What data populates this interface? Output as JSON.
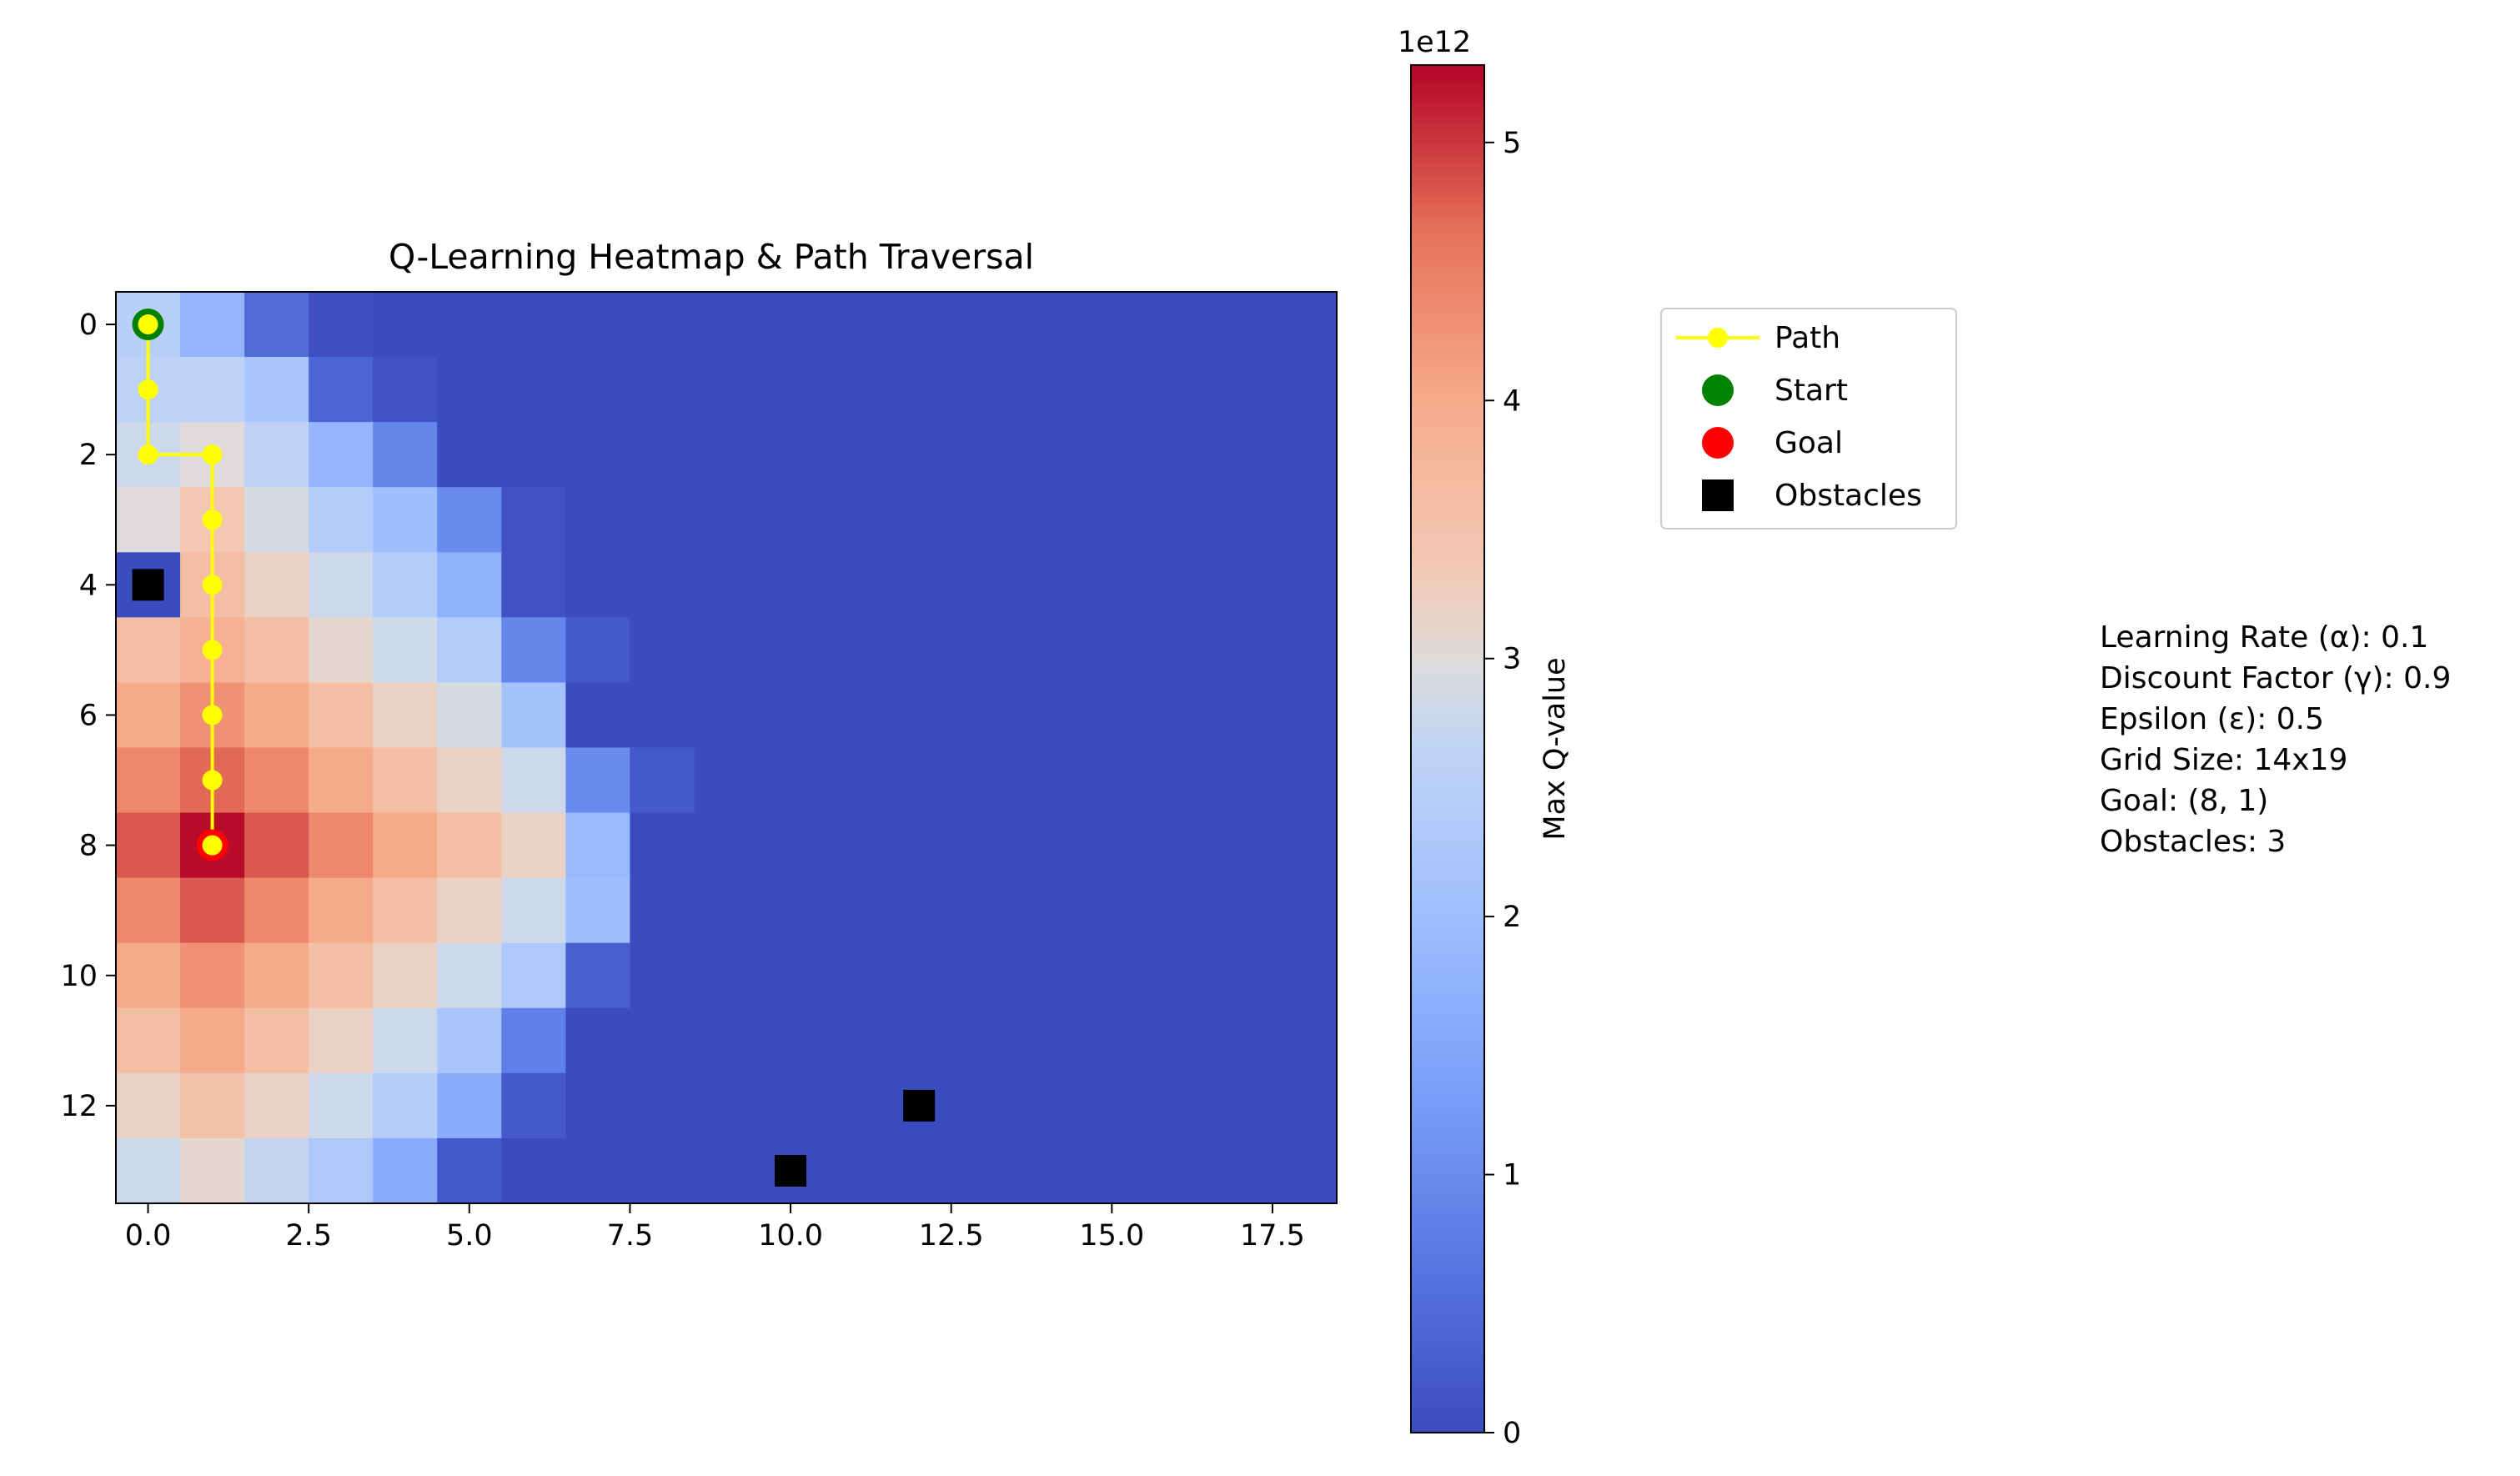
{
  "chart_data": {
    "type": "heatmap",
    "title": "Q-Learning Heatmap & Path Traversal",
    "xlabel": "",
    "ylabel": "",
    "grid": false,
    "rows": 14,
    "cols": 19,
    "xlim": [
      -0.5,
      18.5
    ],
    "ylim": [
      13.5,
      -0.5
    ],
    "x_ticks": [
      0,
      2.5,
      5,
      7.5,
      10,
      12.5,
      15,
      17.5
    ],
    "x_tick_labels": [
      "0.0",
      "2.5",
      "5.0",
      "7.5",
      "10.0",
      "12.5",
      "15.0",
      "17.5"
    ],
    "y_ticks": [
      0,
      2,
      4,
      6,
      8,
      10,
      12
    ],
    "y_tick_labels": [
      "0",
      "2",
      "4",
      "6",
      "8",
      "10",
      "12"
    ],
    "values_unit_exponent": 12,
    "values": [
      [
        2.5,
        1.8,
        0.5,
        0.05,
        0,
        0,
        0,
        0,
        0,
        0,
        0,
        0,
        0,
        0,
        0,
        0,
        0,
        0,
        0
      ],
      [
        2.6,
        2.6,
        2.2,
        0.4,
        0.1,
        0,
        0,
        0,
        0,
        0,
        0,
        0,
        0,
        0,
        0,
        0,
        0,
        0,
        0
      ],
      [
        2.8,
        3.0,
        2.6,
        1.8,
        0.9,
        0,
        0,
        0,
        0,
        0,
        0,
        0,
        0,
        0,
        0,
        0,
        0,
        0,
        0
      ],
      [
        3.0,
        3.4,
        2.9,
        2.4,
        2.0,
        1.0,
        0.1,
        0,
        0,
        0,
        0,
        0,
        0,
        0,
        0,
        0,
        0,
        0,
        0
      ],
      [
        0,
        3.6,
        3.2,
        2.8,
        2.4,
        1.7,
        0.1,
        0,
        0,
        0,
        0,
        0,
        0,
        0,
        0,
        0,
        0,
        0,
        0
      ],
      [
        3.6,
        3.9,
        3.6,
        3.1,
        2.8,
        2.4,
        0.9,
        0.2,
        0,
        0,
        0,
        0,
        0,
        0,
        0,
        0,
        0,
        0,
        0
      ],
      [
        4.0,
        4.3,
        4.0,
        3.6,
        3.2,
        2.9,
        2.1,
        0,
        0,
        0,
        0,
        0,
        0,
        0,
        0,
        0,
        0,
        0,
        0
      ],
      [
        4.4,
        4.7,
        4.4,
        4.0,
        3.6,
        3.2,
        2.8,
        1.0,
        0.2,
        0,
        0,
        0,
        0,
        0,
        0,
        0,
        0,
        0,
        0
      ],
      [
        4.8,
        5.25,
        4.8,
        4.4,
        4.0,
        3.6,
        3.2,
        1.9,
        0,
        0,
        0,
        0,
        0,
        0,
        0,
        0,
        0,
        0,
        0
      ],
      [
        4.4,
        4.8,
        4.4,
        4.0,
        3.6,
        3.2,
        2.8,
        2.0,
        0,
        0,
        0,
        0,
        0,
        0,
        0,
        0,
        0,
        0,
        0
      ],
      [
        4.0,
        4.3,
        4.0,
        3.6,
        3.2,
        2.8,
        2.3,
        0.3,
        0,
        0,
        0,
        0,
        0,
        0,
        0,
        0,
        0,
        0,
        0
      ],
      [
        3.6,
        4.0,
        3.6,
        3.2,
        2.8,
        2.2,
        0.8,
        0,
        0,
        0,
        0,
        0,
        0,
        0,
        0,
        0,
        0,
        0,
        0
      ],
      [
        3.2,
        3.5,
        3.2,
        2.8,
        2.4,
        1.6,
        0.2,
        0,
        0,
        0,
        0,
        0,
        0,
        0,
        0,
        0,
        0,
        0,
        0
      ],
      [
        2.8,
        3.1,
        2.7,
        2.3,
        1.6,
        0.2,
        0,
        0,
        0,
        0,
        0,
        0,
        0,
        0,
        0,
        0,
        0,
        0,
        0
      ]
    ],
    "path": [
      [
        0,
        0
      ],
      [
        1,
        0
      ],
      [
        2,
        0
      ],
      [
        2,
        1
      ],
      [
        3,
        1
      ],
      [
        4,
        1
      ],
      [
        5,
        1
      ],
      [
        6,
        1
      ],
      [
        7,
        1
      ],
      [
        8,
        1
      ]
    ],
    "start": [
      0,
      0
    ],
    "goal": [
      8,
      1
    ],
    "obstacles": [
      [
        4,
        0
      ],
      [
        12,
        12
      ],
      [
        13,
        10
      ]
    ],
    "colorbar": {
      "label": "Max Q-value",
      "min": 0,
      "max": 5.3,
      "ticks": [
        0,
        1,
        2,
        3,
        4,
        5
      ],
      "tick_labels": [
        "0",
        "1",
        "2",
        "3",
        "4",
        "5"
      ],
      "offset_text": "1e12"
    },
    "legend": {
      "placement": "right",
      "entries": [
        {
          "name": "Path",
          "marker": "line-dot",
          "color": "#ffff00"
        },
        {
          "name": "Start",
          "marker": "circle",
          "color": "#008000"
        },
        {
          "name": "Goal",
          "marker": "circle",
          "color": "#ff0000"
        },
        {
          "name": "Obstacles",
          "marker": "square",
          "color": "#000000"
        }
      ]
    },
    "info_lines": [
      "Learning Rate (α): 0.1",
      "Discount Factor (γ): 0.9",
      "Epsilon (ε): 0.5",
      "Grid Size: 14x19",
      "Goal: (8, 1)",
      "Obstacles: 3"
    ],
    "colors": {
      "path": "#ffff00",
      "start": "#008000",
      "goal": "#ff0000",
      "obstacle": "#000000"
    },
    "colormap": "coolwarm"
  }
}
